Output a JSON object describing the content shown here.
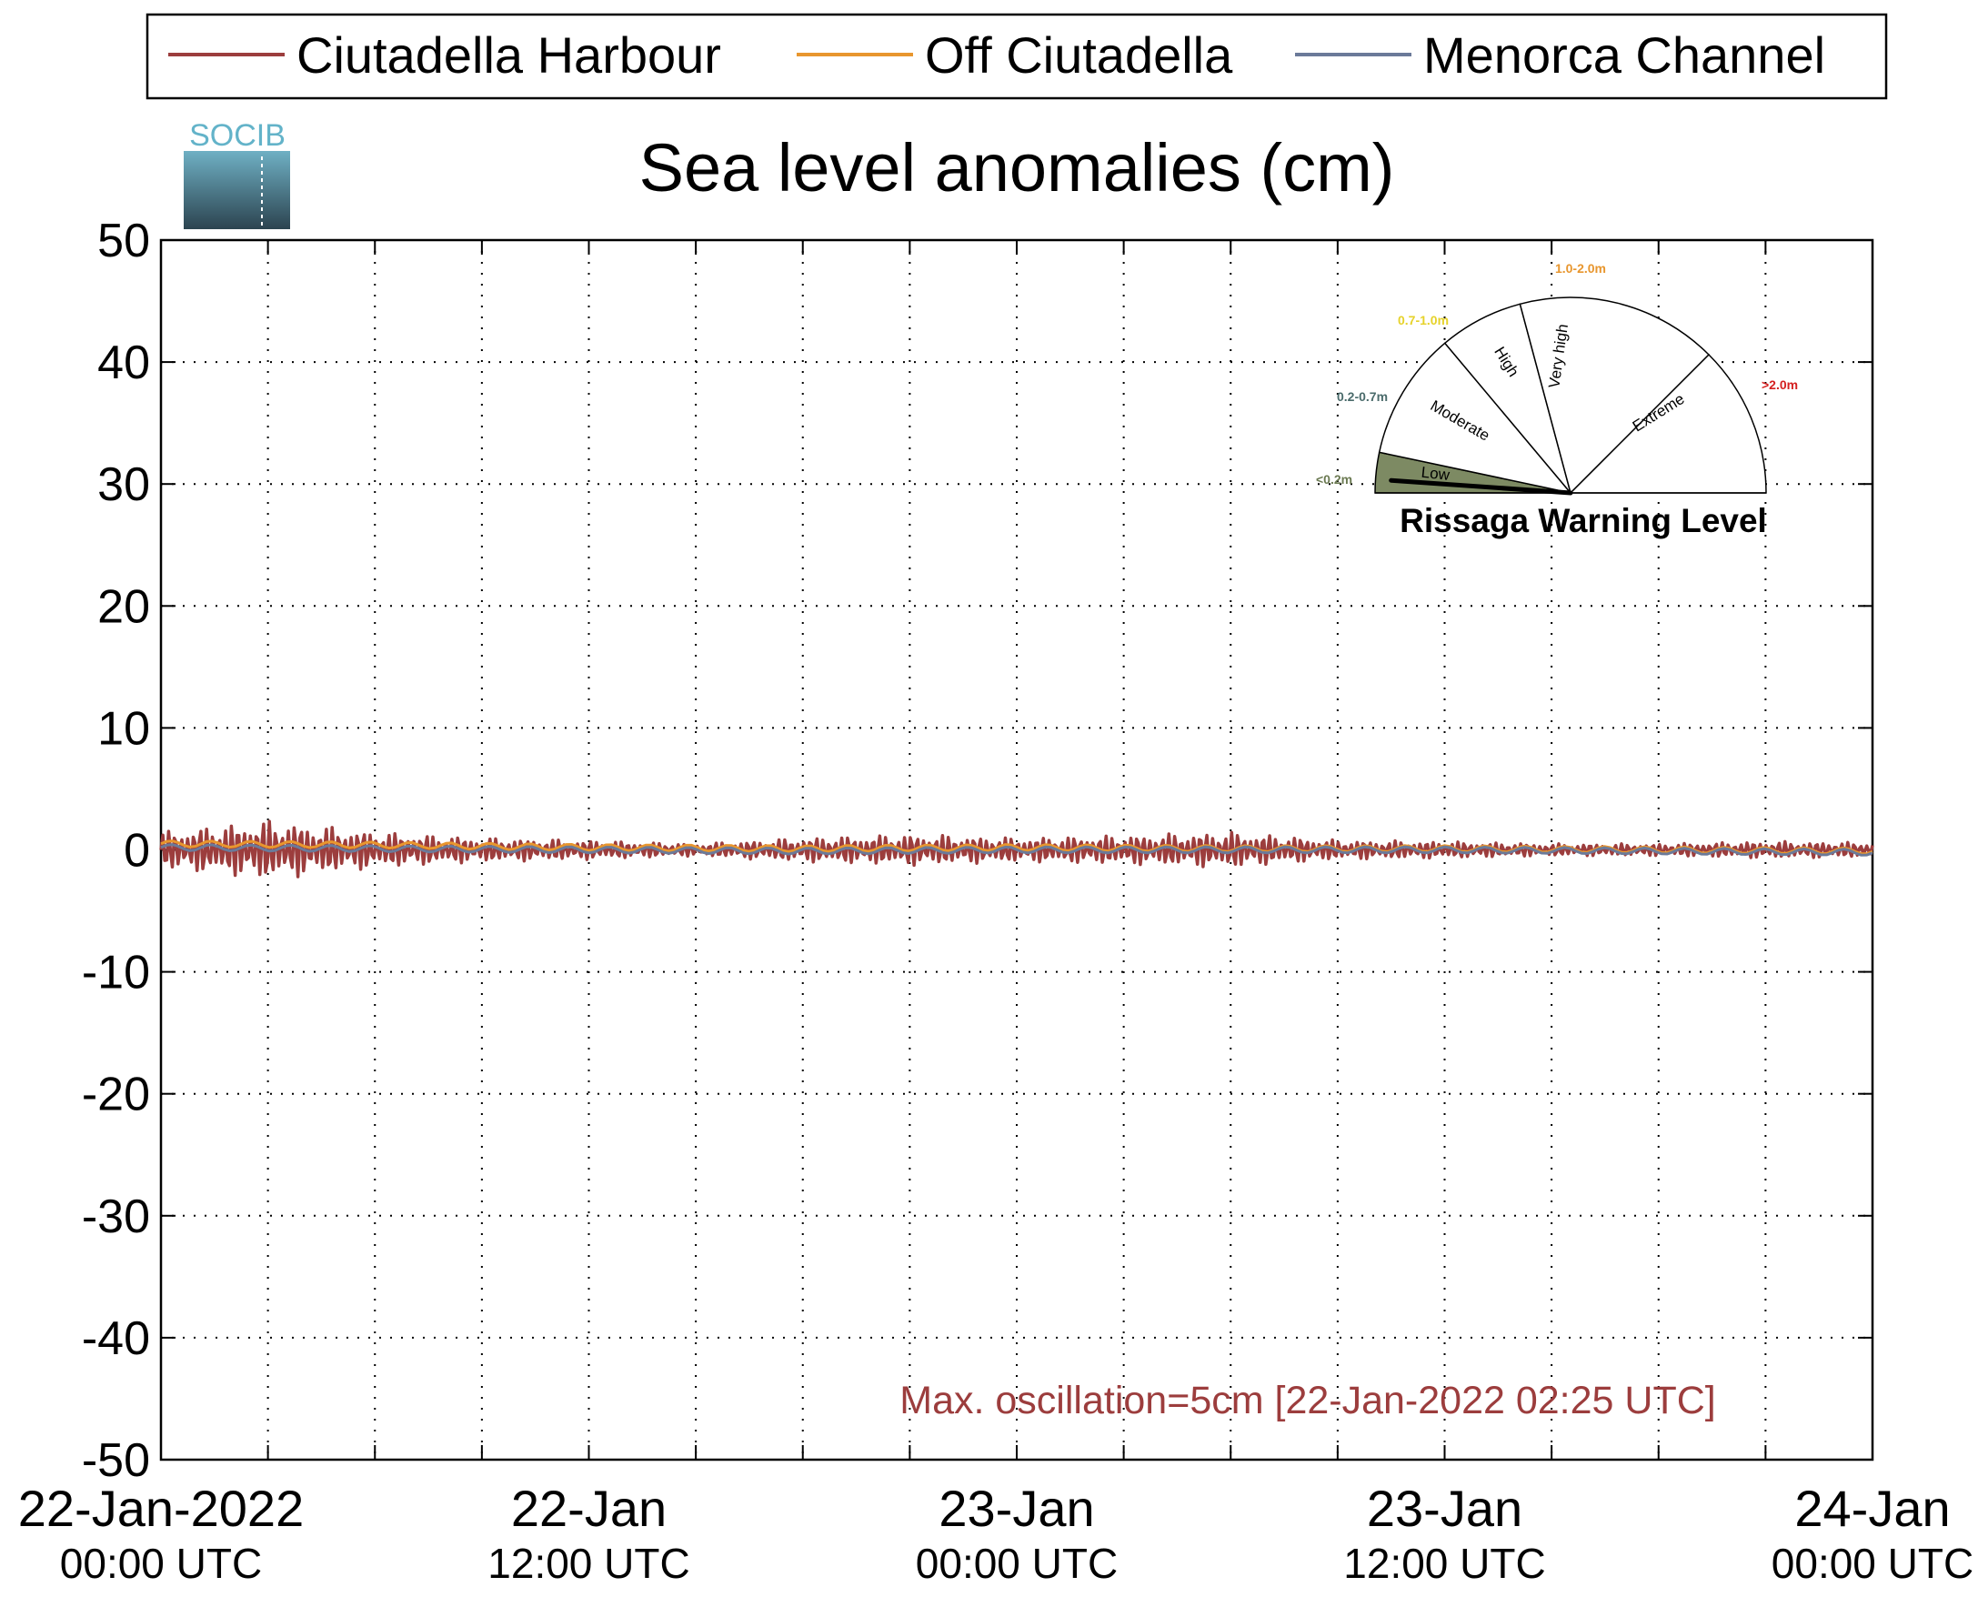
{
  "chart_data": {
    "type": "line",
    "title": "Sea level anomalies (cm)",
    "xlabel": "",
    "ylabel": "",
    "ylim": [
      -50,
      50
    ],
    "yticks": [
      50,
      40,
      30,
      20,
      10,
      0,
      -10,
      -20,
      -30,
      -40,
      -50
    ],
    "xlim": [
      "2022-01-22 00:00",
      "2022-01-24 00:00"
    ],
    "x_tick_labels": [
      {
        "date": "22-Jan-2022",
        "time": "00:00 UTC"
      },
      {
        "date": "22-Jan",
        "time": "12:00 UTC"
      },
      {
        "date": "23-Jan",
        "time": "00:00 UTC"
      },
      {
        "date": "23-Jan",
        "time": "12:00 UTC"
      },
      {
        "date": "24-Jan",
        "time": "00:00 UTC"
      }
    ],
    "grid": true,
    "legend_position": "top",
    "logo_text": "SOCIB",
    "series": [
      {
        "name": "Ciutadella Harbour",
        "color": "#9c3d3d",
        "x": [
          "2022-01-22 00:00",
          "2022-01-22 03:00",
          "2022-01-22 06:00",
          "2022-01-22 09:00",
          "2022-01-22 12:00",
          "2022-01-22 15:00",
          "2022-01-22 18:00",
          "2022-01-22 21:00",
          "2022-01-23 00:00",
          "2022-01-23 03:00",
          "2022-01-23 06:00",
          "2022-01-23 09:00",
          "2022-01-23 12:00",
          "2022-01-23 15:00",
          "2022-01-23 18:00",
          "2022-01-23 21:00",
          "2022-01-24 00:00"
        ],
        "envelope": [
          1.5,
          2.5,
          1.5,
          1.0,
          0.8,
          0.5,
          1.0,
          1.3,
          1.0,
          1.2,
          1.5,
          0.8,
          0.7,
          0.5,
          0.5,
          0.7,
          0.6
        ]
      },
      {
        "name": "Off Ciutadella",
        "color": "#e8962e",
        "x": [
          "2022-01-22 00:00",
          "2022-01-22 06:00",
          "2022-01-22 12:00",
          "2022-01-22 18:00",
          "2022-01-23 00:00",
          "2022-01-23 06:00",
          "2022-01-23 12:00",
          "2022-01-23 18:00",
          "2022-01-24 00:00"
        ],
        "values": [
          0.5,
          0.4,
          0.2,
          0.1,
          0.2,
          0.1,
          0.1,
          0.0,
          -0.1
        ]
      },
      {
        "name": "Menorca Channel",
        "color": "#6b7a99",
        "x": [
          "2022-01-22 00:00",
          "2022-01-22 06:00",
          "2022-01-22 12:00",
          "2022-01-22 18:00",
          "2022-01-23 00:00",
          "2022-01-23 06:00",
          "2022-01-23 12:00",
          "2022-01-23 18:00",
          "2022-01-24 00:00"
        ],
        "values": [
          0.2,
          0.1,
          0.0,
          -0.1,
          0.0,
          0.0,
          0.0,
          -0.1,
          -0.2
        ]
      }
    ],
    "annotation": {
      "text": "Max. oscillation=5cm [22-Jan-2022 02:25 UTC]",
      "color": "#9c3d3d"
    },
    "warning_gauge": {
      "title": "Rissaga Warning Level",
      "current_level": "Low",
      "sectors": [
        {
          "name": "Low",
          "range": "<0.2m",
          "range_color": "#6b7a52",
          "fill": "#7d8a63"
        },
        {
          "name": "Moderate",
          "range": "0.2-0.7m",
          "range_color": "#4a6b6b",
          "fill": "#ffffff"
        },
        {
          "name": "High",
          "range": "0.7-1.0m",
          "range_color": "#e6d22a",
          "fill": "#ffffff"
        },
        {
          "name": "Very high",
          "range": "1.0-2.0m",
          "range_color": "#e8962e",
          "fill": "#ffffff"
        },
        {
          "name": "Extreme",
          "range": ">2.0m",
          "range_color": "#d42020",
          "fill": "#ffffff"
        }
      ]
    }
  }
}
